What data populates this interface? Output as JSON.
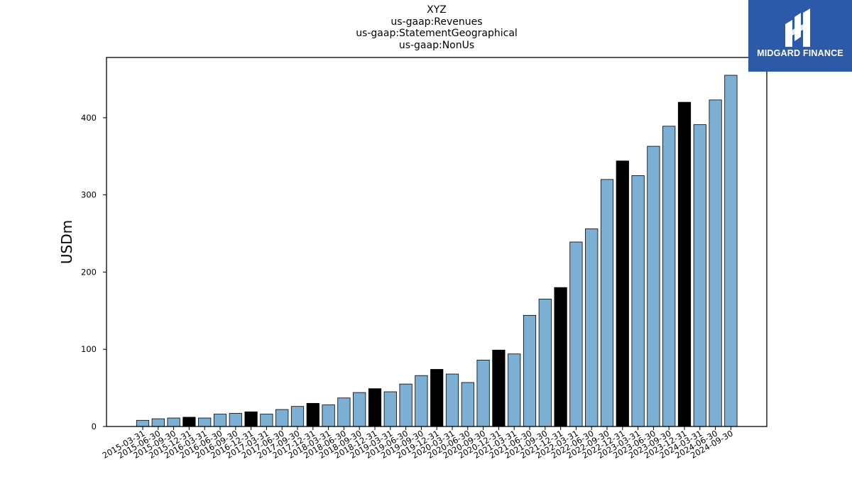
{
  "chart_data": {
    "type": "bar",
    "title_lines": [
      "XYZ",
      "us-gaap:Revenues",
      "us-gaap:StatementGeographical",
      "us-gaap:NonUs"
    ],
    "ylabel": "USDm",
    "xlabel": "",
    "ylim": [
      0,
      478
    ],
    "yticks": [
      0,
      100,
      200,
      300,
      400
    ],
    "grid": false,
    "legend": "none",
    "colors": {
      "quarter": "#7bafd4",
      "year_end": "#000000",
      "edge": "#000000"
    },
    "categories": [
      "2015-03-31",
      "2015-06-30",
      "2015-09-30",
      "2015-12-31",
      "2016-03-31",
      "2016-06-30",
      "2016-09-30",
      "2016-12-31",
      "2017-03-31",
      "2017-06-30",
      "2017-09-30",
      "2017-12-31",
      "2018-03-31",
      "2018-06-30",
      "2018-09-30",
      "2018-12-31",
      "2019-03-31",
      "2019-06-30",
      "2019-09-30",
      "2019-12-31",
      "2020-03-31",
      "2020-06-30",
      "2020-09-30",
      "2020-12-31",
      "2021-03-31",
      "2021-06-30",
      "2021-09-30",
      "2021-12-31",
      "2022-03-31",
      "2022-06-30",
      "2022-09-30",
      "2022-12-31",
      "2023-03-31",
      "2023-06-30",
      "2023-09-30",
      "2023-12-31",
      "2024-03-31",
      "2024-06-30",
      "2024-09-30"
    ],
    "values": [
      8,
      10,
      11,
      12,
      11,
      16,
      17,
      19,
      16,
      22,
      26,
      30,
      28,
      37,
      44,
      49,
      45,
      55,
      66,
      74,
      68,
      57,
      86,
      99,
      94,
      144,
      165,
      180,
      239,
      256,
      320,
      344,
      325,
      363,
      389,
      420,
      391,
      423,
      455
    ],
    "year_end": [
      false,
      false,
      false,
      true,
      false,
      false,
      false,
      true,
      false,
      false,
      false,
      true,
      false,
      false,
      false,
      true,
      false,
      false,
      false,
      true,
      false,
      false,
      false,
      true,
      false,
      false,
      false,
      true,
      false,
      false,
      false,
      true,
      false,
      false,
      false,
      true,
      false,
      false,
      false
    ]
  },
  "logo": {
    "text": "MIDGARD FINANCE",
    "icon": "midgard-logo-icon"
  }
}
